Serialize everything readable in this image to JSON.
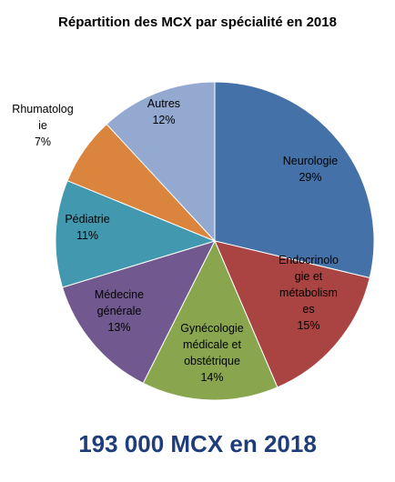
{
  "chart_data": {
    "type": "pie",
    "title": "Répartition des MCX par spécialité en 2018",
    "slices": [
      {
        "label": [
          "Neurologie",
          "29%"
        ],
        "value": 29,
        "color": "#4472a8"
      },
      {
        "label": [
          "Endocrinolo",
          "gie et",
          "métabolism",
          "es",
          "15%"
        ],
        "value": 15,
        "color": "#aa4442"
      },
      {
        "label": [
          "Gynécologie",
          "médicale et",
          "obstétrique",
          "14%"
        ],
        "value": 14,
        "color": "#89a54e"
      },
      {
        "label": [
          "Médecine",
          "générale",
          "13%"
        ],
        "value": 13,
        "color": "#71588f"
      },
      {
        "label": [
          "Pédiatrie",
          "11%"
        ],
        "value": 11,
        "color": "#4198af"
      },
      {
        "label": [
          "Rhumatolog",
          "ie",
          "7%"
        ],
        "value": 7,
        "color": "#db843d"
      },
      {
        "label": [
          "Autres",
          "12%"
        ],
        "value": 12,
        "color": "#93a9cf"
      }
    ],
    "legend": "none"
  },
  "footer": {
    "text": "193 000 MCX en 2018"
  }
}
